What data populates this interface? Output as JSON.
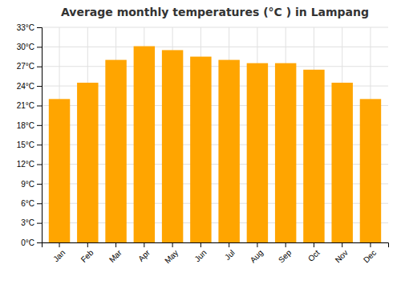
{
  "chart_data": {
    "type": "bar",
    "title": "Average monthly temperatures (°C ) in Lampang",
    "categories": [
      "Jan",
      "Feb",
      "Mar",
      "Apr",
      "May",
      "Jun",
      "Jul",
      "Aug",
      "Sep",
      "Oct",
      "Nov",
      "Dec"
    ],
    "values": [
      22.0,
      24.5,
      28.0,
      30.1,
      29.5,
      28.5,
      28.0,
      27.5,
      27.5,
      26.5,
      24.5,
      22.0
    ],
    "color": "#FFA500",
    "ylim": [
      0,
      33
    ],
    "yticks": [
      {
        "value": 0,
        "label": "0°C"
      },
      {
        "value": 3,
        "label": "3°C"
      },
      {
        "value": 6,
        "label": "6°C"
      },
      {
        "value": 9,
        "label": "9°C"
      },
      {
        "value": 12,
        "label": "12°C"
      },
      {
        "value": 15,
        "label": "15°C"
      },
      {
        "value": 18,
        "label": "18°C"
      },
      {
        "value": 21,
        "label": "21°C"
      },
      {
        "value": 24,
        "label": "24°C"
      },
      {
        "value": 27,
        "label": "27°C"
      },
      {
        "value": 30,
        "label": "30°C"
      },
      {
        "value": 33,
        "label": "33°C"
      }
    ],
    "grid": true
  }
}
